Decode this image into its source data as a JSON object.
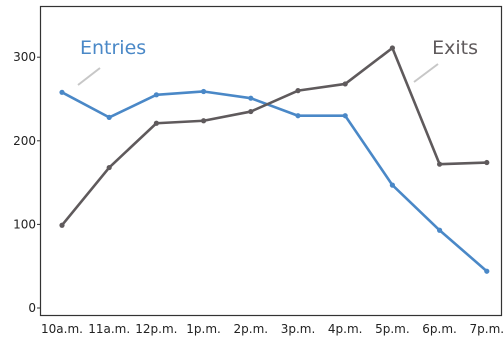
{
  "chart_data": {
    "type": "line",
    "title": "",
    "xlabel": "",
    "ylabel": "",
    "categories": [
      "10a.m.",
      "11a.m.",
      "12p.m.",
      "1p.m.",
      "2p.m.",
      "3p.m.",
      "4p.m.",
      "5p.m.",
      "6p.m.",
      "7p.m."
    ],
    "ylim": [
      0,
      350
    ],
    "yticks": [
      0,
      100,
      200,
      300
    ],
    "grid": false,
    "legend": "direct labels on lines",
    "series": [
      {
        "name": "Entries",
        "color": "#4a88c7",
        "values": [
          258,
          228,
          255,
          259,
          251,
          230,
          230,
          147,
          93,
          44
        ]
      },
      {
        "name": "Exits",
        "color": "#5f5a5c",
        "values": [
          99,
          168,
          221,
          224,
          235,
          260,
          268,
          311,
          172,
          174
        ]
      }
    ]
  }
}
